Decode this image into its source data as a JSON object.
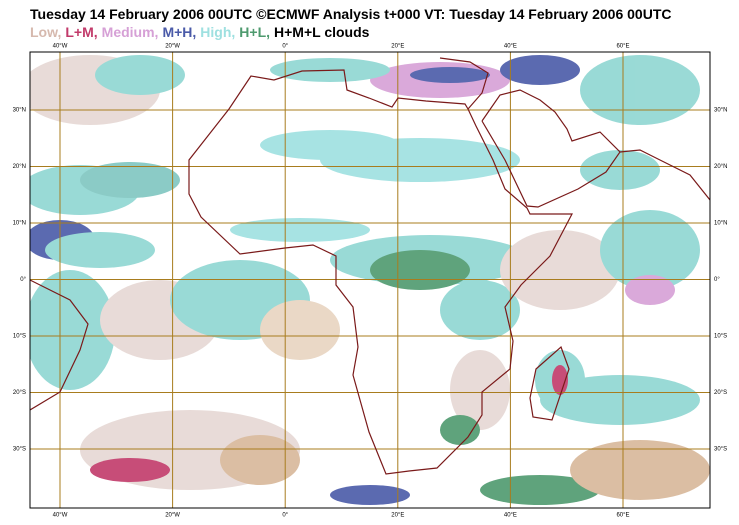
{
  "header": {
    "title": "Tuesday 14 February 2006 00UTC ©ECMWF Analysis t+000 VT: Tuesday 14 February 2006 00UTC",
    "legend": [
      {
        "text": "Low,",
        "color": "#d6b9ae"
      },
      {
        "text": "L+M,",
        "color": "#c23a6a"
      },
      {
        "text": "Medium,",
        "color": "#d6a0d6"
      },
      {
        "text": "M+H,",
        "color": "#4a5aa8"
      },
      {
        "text": "High,",
        "color": "#9ee0e0"
      },
      {
        "text": "H+L,",
        "color": "#4e9a6e"
      },
      {
        "text": "H+M+L clouds",
        "color": "#000000"
      }
    ]
  },
  "map": {
    "lon_labels": [
      "40°W",
      "20°W",
      "0°",
      "20°E",
      "40°E",
      "60°E"
    ],
    "lat_labels": [
      "30°N",
      "20°N",
      "10°N",
      "0°",
      "10°S",
      "20°S",
      "30°S"
    ]
  }
}
